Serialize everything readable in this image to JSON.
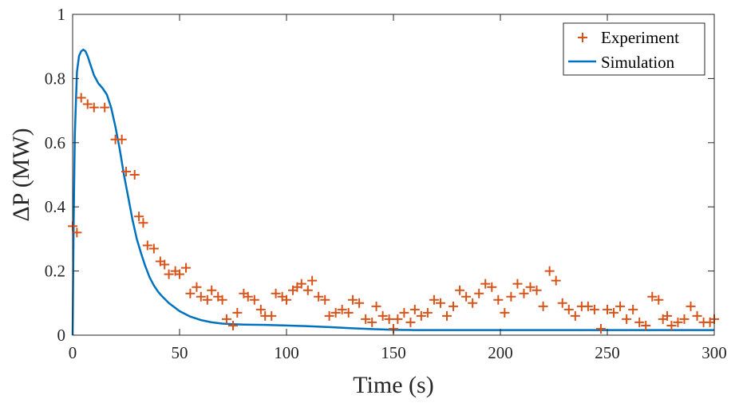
{
  "chart_data": {
    "type": "line",
    "title": "",
    "xlabel": "Time (s)",
    "ylabel": "ΔP (MW)",
    "xlim": [
      0,
      300
    ],
    "ylim": [
      0,
      1
    ],
    "xticks": [
      0,
      50,
      100,
      150,
      200,
      250,
      300
    ],
    "xtick_labels": [
      "0",
      "50",
      "100",
      "150",
      "200",
      "250",
      "300"
    ],
    "yticks": [
      0,
      0.2,
      0.4,
      0.6,
      0.8,
      1
    ],
    "ytick_labels": [
      "0",
      "0.2",
      "0.4",
      "0.6",
      "0.8",
      "1"
    ],
    "grid": false,
    "legend_position": "top-right",
    "series": [
      {
        "name": "Experiment",
        "style": "markers-plus",
        "color": "#d95319",
        "x": [
          0,
          2,
          4,
          7,
          10,
          15,
          20,
          23,
          25,
          29,
          31,
          33,
          35,
          38,
          41,
          43,
          45,
          48,
          50,
          53,
          55,
          58,
          60,
          63,
          65,
          68,
          70,
          72,
          75,
          77,
          80,
          82,
          85,
          88,
          90,
          93,
          95,
          98,
          100,
          103,
          105,
          107,
          110,
          112,
          115,
          118,
          120,
          123,
          126,
          129,
          131,
          134,
          137,
          140,
          142,
          145,
          148,
          150,
          152,
          155,
          158,
          160,
          163,
          166,
          169,
          172,
          175,
          178,
          181,
          184,
          187,
          190,
          193,
          196,
          199,
          202,
          205,
          208,
          211,
          214,
          217,
          220,
          223,
          226,
          229,
          232,
          235,
          238,
          241,
          244,
          247,
          250,
          253,
          256,
          259,
          262,
          265,
          268,
          271,
          274,
          276,
          278,
          280,
          283,
          286,
          289,
          292,
          295,
          298,
          300
        ],
        "y": [
          0.34,
          0.32,
          0.74,
          0.72,
          0.71,
          0.71,
          0.61,
          0.61,
          0.51,
          0.5,
          0.37,
          0.35,
          0.28,
          0.27,
          0.23,
          0.22,
          0.19,
          0.2,
          0.19,
          0.21,
          0.13,
          0.15,
          0.12,
          0.11,
          0.14,
          0.12,
          0.11,
          0.05,
          0.03,
          0.07,
          0.13,
          0.12,
          0.11,
          0.08,
          0.06,
          0.06,
          0.13,
          0.12,
          0.11,
          0.14,
          0.15,
          0.16,
          0.14,
          0.17,
          0.12,
          0.11,
          0.06,
          0.07,
          0.08,
          0.07,
          0.11,
          0.1,
          0.05,
          0.04,
          0.09,
          0.06,
          0.05,
          0.02,
          0.05,
          0.07,
          0.04,
          0.08,
          0.06,
          0.07,
          0.11,
          0.1,
          0.06,
          0.09,
          0.14,
          0.12,
          0.1,
          0.13,
          0.16,
          0.15,
          0.11,
          0.07,
          0.12,
          0.16,
          0.13,
          0.15,
          0.14,
          0.09,
          0.2,
          0.17,
          0.1,
          0.08,
          0.06,
          0.09,
          0.09,
          0.08,
          0.02,
          0.08,
          0.07,
          0.09,
          0.05,
          0.08,
          0.04,
          0.03,
          0.12,
          0.11,
          0.05,
          0.06,
          0.03,
          0.04,
          0.05,
          0.09,
          0.06,
          0.04,
          0.04,
          0.05
        ]
      },
      {
        "name": "Simulation",
        "style": "line",
        "color": "#0072bd",
        "x": [
          0,
          0.5,
          1,
          2,
          3,
          4,
          5,
          6,
          7,
          8,
          10,
          12,
          14,
          16,
          18,
          20,
          22,
          24,
          26,
          28,
          30,
          32,
          34,
          36,
          38,
          40,
          42,
          45,
          48,
          50,
          55,
          60,
          65,
          70,
          75,
          80,
          90,
          100,
          110,
          120,
          130,
          140,
          150,
          160,
          180,
          200,
          220,
          240,
          260,
          280,
          300
        ],
        "y": [
          0,
          0.35,
          0.62,
          0.82,
          0.87,
          0.885,
          0.89,
          0.885,
          0.87,
          0.85,
          0.81,
          0.785,
          0.77,
          0.75,
          0.71,
          0.65,
          0.58,
          0.5,
          0.43,
          0.36,
          0.3,
          0.255,
          0.215,
          0.18,
          0.155,
          0.135,
          0.12,
          0.1,
          0.085,
          0.075,
          0.058,
          0.047,
          0.04,
          0.036,
          0.034,
          0.033,
          0.032,
          0.03,
          0.028,
          0.025,
          0.022,
          0.019,
          0.017,
          0.016,
          0.016,
          0.016,
          0.016,
          0.016,
          0.016,
          0.016,
          0.016
        ]
      }
    ]
  }
}
